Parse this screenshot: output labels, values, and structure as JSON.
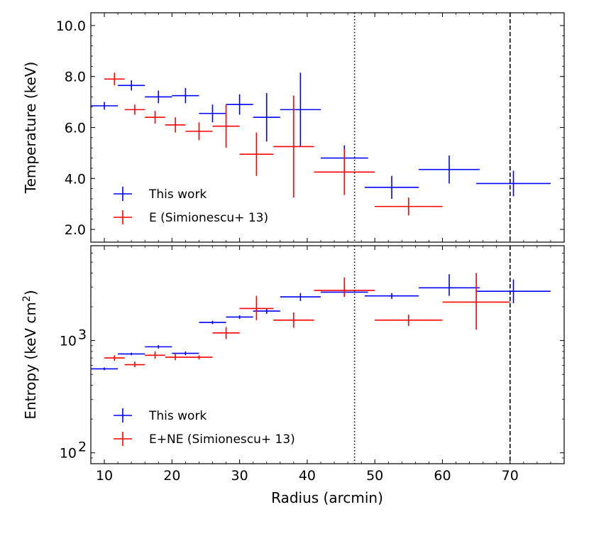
{
  "colors": {
    "this_work": "#0000ff",
    "simionescu": "#ff0000",
    "axes": "#000000"
  },
  "chart_data": [
    {
      "type": "scatter",
      "ylabel": "Temperature (keV)",
      "xlim": [
        8,
        78
      ],
      "ylim": [
        1.5,
        10.5
      ],
      "yticks": [
        "2.0",
        "4.0",
        "6.0",
        "8.0",
        "10.0"
      ],
      "ytick_values": [
        2,
        4,
        6,
        8,
        10
      ],
      "reference_lines": [
        {
          "x": 47,
          "style": "dotted"
        },
        {
          "x": 70,
          "style": "dashed"
        }
      ],
      "legend_position": "lower-left",
      "series": [
        {
          "name": "This work",
          "color": "#0000ff",
          "points": [
            {
              "x": 10,
              "xerr": 2,
              "y": 6.85,
              "yerr": 0.15
            },
            {
              "x": 14,
              "xerr": 2,
              "y": 7.65,
              "yerr": 0.2
            },
            {
              "x": 18,
              "xerr": 2,
              "y": 7.2,
              "yerr": 0.25
            },
            {
              "x": 22,
              "xerr": 2,
              "y": 7.25,
              "yerr": 0.3
            },
            {
              "x": 26,
              "xerr": 2,
              "y": 6.55,
              "yerr": 0.35
            },
            {
              "x": 30,
              "xerr": 2,
              "y": 6.9,
              "yerr": 0.4
            },
            {
              "x": 34,
              "xerr": 2,
              "y": 6.4,
              "yerr": 0.95
            },
            {
              "x": 39,
              "xerr": 3,
              "y": 6.7,
              "yerr": 1.45
            },
            {
              "x": 45.5,
              "xerr": 3.5,
              "y": 4.8,
              "yerr": 0.5
            },
            {
              "x": 52.5,
              "xerr": 4,
              "y": 3.65,
              "yerr": 0.45
            },
            {
              "x": 61,
              "xerr": 4.5,
              "y": 4.35,
              "yerr": 0.55
            },
            {
              "x": 70.5,
              "xerr": 5.5,
              "y": 3.8,
              "yerr": 0.5
            }
          ]
        },
        {
          "name": "E (Simionescu+ 13)",
          "color": "#ff0000",
          "points": [
            {
              "x": 11.5,
              "xerr": 1.5,
              "y": 7.9,
              "yerr": 0.25
            },
            {
              "x": 14.5,
              "xerr": 1.5,
              "y": 6.7,
              "yerr": 0.2
            },
            {
              "x": 17.5,
              "xerr": 1.5,
              "y": 6.4,
              "yerr": 0.25
            },
            {
              "x": 20.5,
              "xerr": 1.5,
              "y": 6.1,
              "yerr": 0.3
            },
            {
              "x": 24,
              "xerr": 2,
              "y": 5.85,
              "yerr": 0.35
            },
            {
              "x": 28,
              "xerr": 2,
              "y": 6.05,
              "yerr": 0.85
            },
            {
              "x": 32.5,
              "xerr": 2.5,
              "y": 4.95,
              "yerr": 0.85
            },
            {
              "x": 38,
              "xerr": 3,
              "y": 5.25,
              "yerr": 2.0
            },
            {
              "x": 45.5,
              "xerr": 4.5,
              "y": 4.25,
              "yerr": 0.9
            },
            {
              "x": 55,
              "xerr": 5,
              "y": 2.9,
              "yerr": 0.35
            }
          ]
        }
      ]
    },
    {
      "type": "scatter",
      "ylabel": "Entropy (keV cm",
      "ylabel_sup": "2",
      "ylabel_close": ")",
      "xlabel": "Radius (arcmin)",
      "xlim": [
        8,
        78
      ],
      "xticks": [
        "10",
        "20",
        "30",
        "40",
        "50",
        "60",
        "70"
      ],
      "xtick_values": [
        10,
        20,
        30,
        40,
        50,
        60,
        70
      ],
      "yscale": "log",
      "ylim": [
        80,
        7000
      ],
      "yticks_base": [
        "10",
        "10"
      ],
      "yticks_exp": [
        "2",
        "3"
      ],
      "ytick_values": [
        100,
        1000
      ],
      "reference_lines": [
        {
          "x": 47,
          "style": "dotted"
        },
        {
          "x": 70,
          "style": "dashed"
        }
      ],
      "legend_position": "lower-left",
      "series": [
        {
          "name": "This work",
          "color": "#0000ff",
          "points": [
            {
              "x": 10,
              "xerr": 2,
              "y": 560,
              "ylo": 545,
              "yhi": 575
            },
            {
              "x": 14,
              "xerr": 2,
              "y": 760,
              "ylo": 740,
              "yhi": 780
            },
            {
              "x": 18,
              "xerr": 2,
              "y": 880,
              "ylo": 850,
              "yhi": 910
            },
            {
              "x": 22,
              "xerr": 2,
              "y": 770,
              "ylo": 740,
              "yhi": 800
            },
            {
              "x": 26,
              "xerr": 2,
              "y": 1450,
              "ylo": 1400,
              "yhi": 1500
            },
            {
              "x": 30,
              "xerr": 2,
              "y": 1620,
              "ylo": 1560,
              "yhi": 1680
            },
            {
              "x": 34,
              "xerr": 2,
              "y": 1830,
              "ylo": 1730,
              "yhi": 1940
            },
            {
              "x": 39,
              "xerr": 3,
              "y": 2450,
              "ylo": 2250,
              "yhi": 2650
            },
            {
              "x": 45.5,
              "xerr": 3.5,
              "y": 2700,
              "ylo": 2450,
              "yhi": 3000
            },
            {
              "x": 52.5,
              "xerr": 4,
              "y": 2500,
              "ylo": 2350,
              "yhi": 2650
            },
            {
              "x": 61,
              "xerr": 4.5,
              "y": 2950,
              "ylo": 2500,
              "yhi": 3900
            },
            {
              "x": 70.5,
              "xerr": 5.5,
              "y": 2750,
              "ylo": 2150,
              "yhi": 3500
            }
          ]
        },
        {
          "name": "E+NE (Simionescu+ 13)",
          "color": "#ff0000",
          "points": [
            {
              "x": 11.5,
              "xerr": 1.5,
              "y": 700,
              "ylo": 660,
              "yhi": 740
            },
            {
              "x": 14.5,
              "xerr": 1.5,
              "y": 610,
              "ylo": 580,
              "yhi": 650
            },
            {
              "x": 17.5,
              "xerr": 1.5,
              "y": 740,
              "ylo": 690,
              "yhi": 800
            },
            {
              "x": 20.5,
              "xerr": 1.5,
              "y": 710,
              "ylo": 670,
              "yhi": 770
            },
            {
              "x": 24,
              "xerr": 2,
              "y": 710,
              "ylo": 680,
              "yhi": 740
            },
            {
              "x": 28,
              "xerr": 2,
              "y": 1170,
              "ylo": 1030,
              "yhi": 1320
            },
            {
              "x": 32.5,
              "xerr": 2.5,
              "y": 1930,
              "ylo": 1520,
              "yhi": 2500
            },
            {
              "x": 38,
              "xerr": 3,
              "y": 1520,
              "ylo": 1300,
              "yhi": 1780
            },
            {
              "x": 45.5,
              "xerr": 4.5,
              "y": 2800,
              "ylo": 2450,
              "yhi": 3650
            },
            {
              "x": 55,
              "xerr": 5,
              "y": 1520,
              "ylo": 1350,
              "yhi": 1700
            },
            {
              "x": 65,
              "xerr": 5,
              "y": 2200,
              "ylo": 1250,
              "yhi": 4000
            }
          ]
        }
      ]
    }
  ]
}
